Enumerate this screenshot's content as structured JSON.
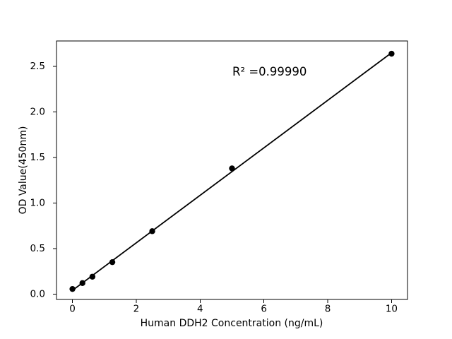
{
  "chart_data": {
    "type": "scatter",
    "title": "",
    "xlabel": "Human DDH2 Concentration (ng/mL)",
    "ylabel": "OD Value(450nm)",
    "annotation": "R² =0.99990",
    "r_squared": "0.99990",
    "x": [
      0,
      0.3125,
      0.625,
      1.25,
      2.5,
      5,
      10
    ],
    "y": [
      0.055,
      0.12,
      0.19,
      0.35,
      0.69,
      1.38,
      2.64
    ],
    "trend_line": {
      "x": [
        0,
        10
      ],
      "y": [
        0.04,
        2.65
      ]
    },
    "xticks": [
      0,
      2,
      4,
      6,
      8,
      10
    ],
    "xtick_labels": [
      "0",
      "2",
      "4",
      "6",
      "8",
      "10"
    ],
    "yticks": [
      0,
      0.5,
      1,
      1.5,
      2,
      2.5
    ],
    "ytick_labels": [
      "0.0",
      "0.5",
      "1.0",
      "1.5",
      "2.0",
      "2.5"
    ],
    "xlim": [
      -0.5,
      10.5
    ],
    "ylim": [
      -0.06,
      2.78
    ],
    "grid": false,
    "legend": "none",
    "colors": {
      "marker": "#000000",
      "line": "#000000",
      "text": "#000000",
      "spine": "#000000",
      "background": "#ffffff"
    }
  }
}
